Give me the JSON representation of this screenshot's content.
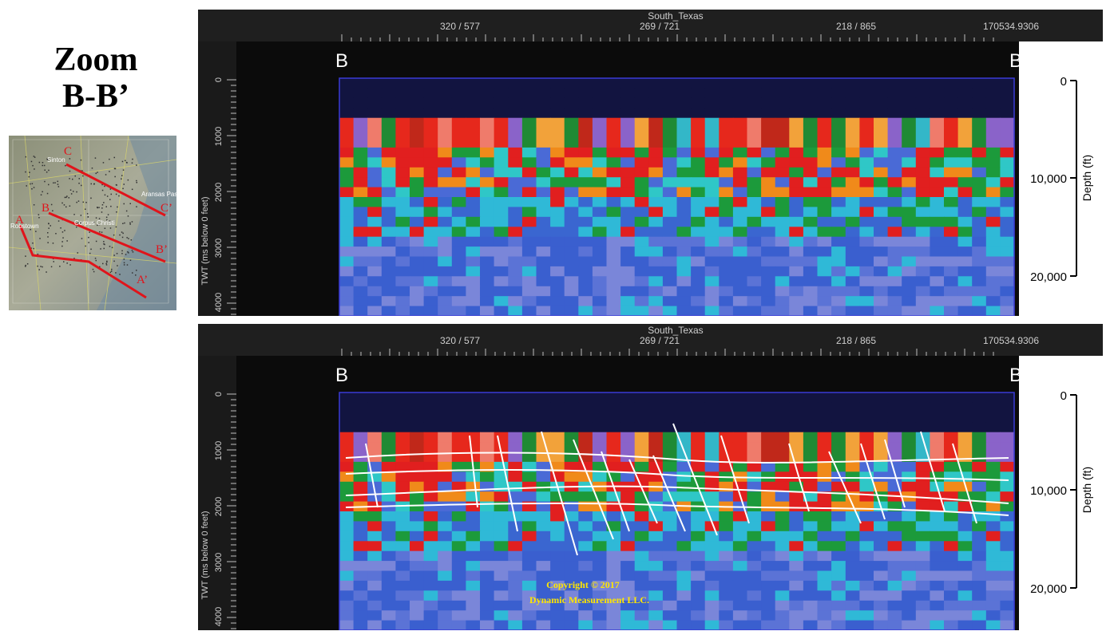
{
  "title": {
    "line1": "Zoom",
    "line2": "B-B’"
  },
  "map": {
    "line_labels": [
      "C",
      "C’",
      "B",
      "B’",
      "A",
      "A’"
    ],
    "places": [
      "Sinton",
      "Aransas Pass",
      "Corpus Christi",
      "Robstown"
    ],
    "line_color": "#e0141b"
  },
  "panels": [
    {
      "survey": "South_Texas",
      "trace_labels": [
        "320 / 577",
        "269 / 721",
        "218 / 865",
        "170534.9306"
      ],
      "end_labels": [
        "B",
        "B′"
      ],
      "twt_ticks": [
        "0",
        "1000",
        "2000",
        "3000",
        "4000"
      ],
      "twt_axis_label": "TWT (ms below 0 feet)",
      "depth_ticks": [
        "0",
        "10,000",
        "20,000"
      ],
      "depth_axis_label": "Depth (ft)",
      "interpretation": false
    },
    {
      "survey": "South_Texas",
      "trace_labels": [
        "320 / 577",
        "269 / 721",
        "218 / 865",
        "170534.9306"
      ],
      "end_labels": [
        "B",
        "B′"
      ],
      "twt_ticks": [
        "0",
        "1000",
        "2000",
        "3000",
        "4000"
      ],
      "twt_axis_label": "TWT (ms below 0 feet)",
      "depth_ticks": [
        "0",
        "10,000",
        "20,000"
      ],
      "depth_axis_label": "Depth (ft)",
      "interpretation": true,
      "copyright": [
        "Copyright © 2017",
        "Dynamic Measurement LLC."
      ]
    }
  ],
  "colors": {
    "copyright": "#ffe600",
    "interpretation_lines": "#ffffff"
  }
}
